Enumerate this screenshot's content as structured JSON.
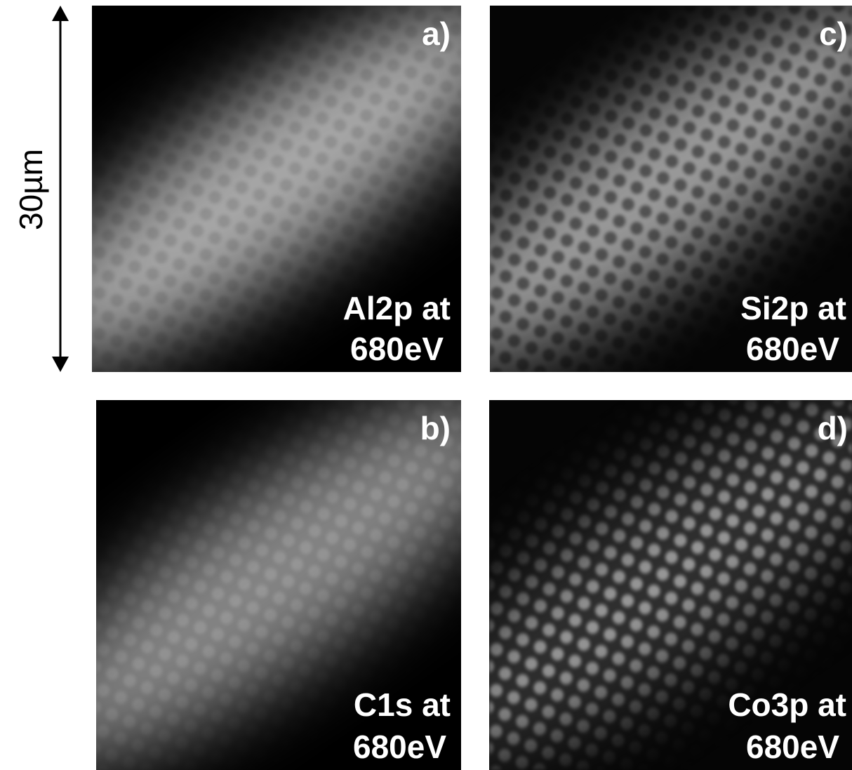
{
  "scale_bar": {
    "label": "30µm"
  },
  "panels": [
    {
      "label": "a)",
      "line1": "Al2p at",
      "line2": "680eV"
    },
    {
      "label": "b)",
      "line1": "C1s at",
      "line2": "680eV"
    },
    {
      "label": "c)",
      "line1": "Si2p at",
      "line2": "680eV"
    },
    {
      "label": "d)",
      "line1": "Co3p at",
      "line2": "680eV"
    }
  ]
}
